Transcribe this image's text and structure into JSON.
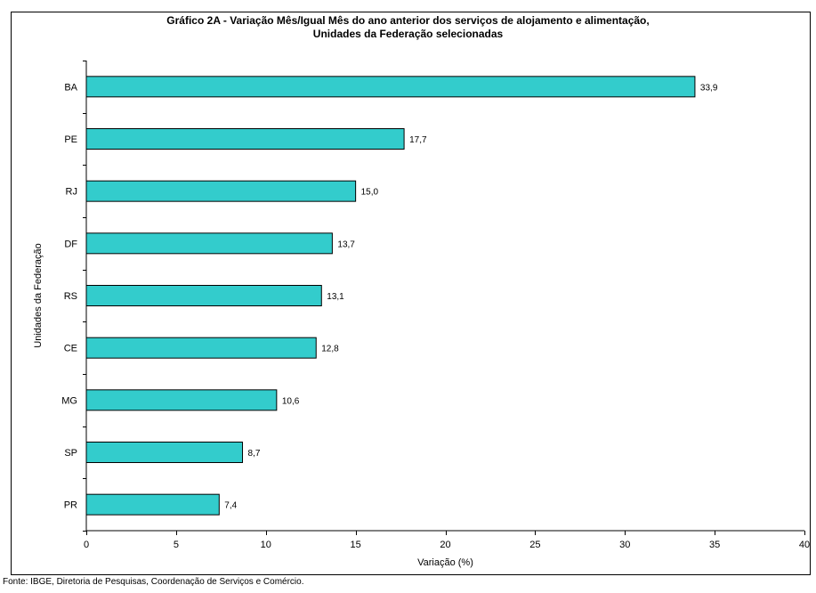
{
  "chart_data": {
    "type": "bar",
    "orientation": "horizontal",
    "title_line1": "Gráfico 2A - Variação Mês/Igual Mês do ano anterior dos serviços de alojamento e alimentação,",
    "title_line2": "Unidades da Federação selecionadas",
    "xlabel": "Variação (%)",
    "ylabel": "Unidades da Federação",
    "categories": [
      "BA",
      "PE",
      "RJ",
      "DF",
      "RS",
      "CE",
      "MG",
      "SP",
      "PR"
    ],
    "values": [
      33.9,
      17.7,
      15.0,
      13.7,
      13.1,
      12.8,
      10.6,
      8.7,
      7.4
    ],
    "value_labels": [
      "33,9",
      "17,7",
      "15,0",
      "13,7",
      "13,1",
      "12,8",
      "10,6",
      "8,7",
      "7,4"
    ],
    "xlim": [
      0,
      40
    ],
    "xticks": [
      0,
      5,
      10,
      15,
      20,
      25,
      30,
      35,
      40
    ],
    "grid": false,
    "legend": "none",
    "bar_color": "#33CCCC"
  },
  "source_note": "Fonte: IBGE, Diretoria de Pesquisas, Coordenação de Serviços e Comércio."
}
